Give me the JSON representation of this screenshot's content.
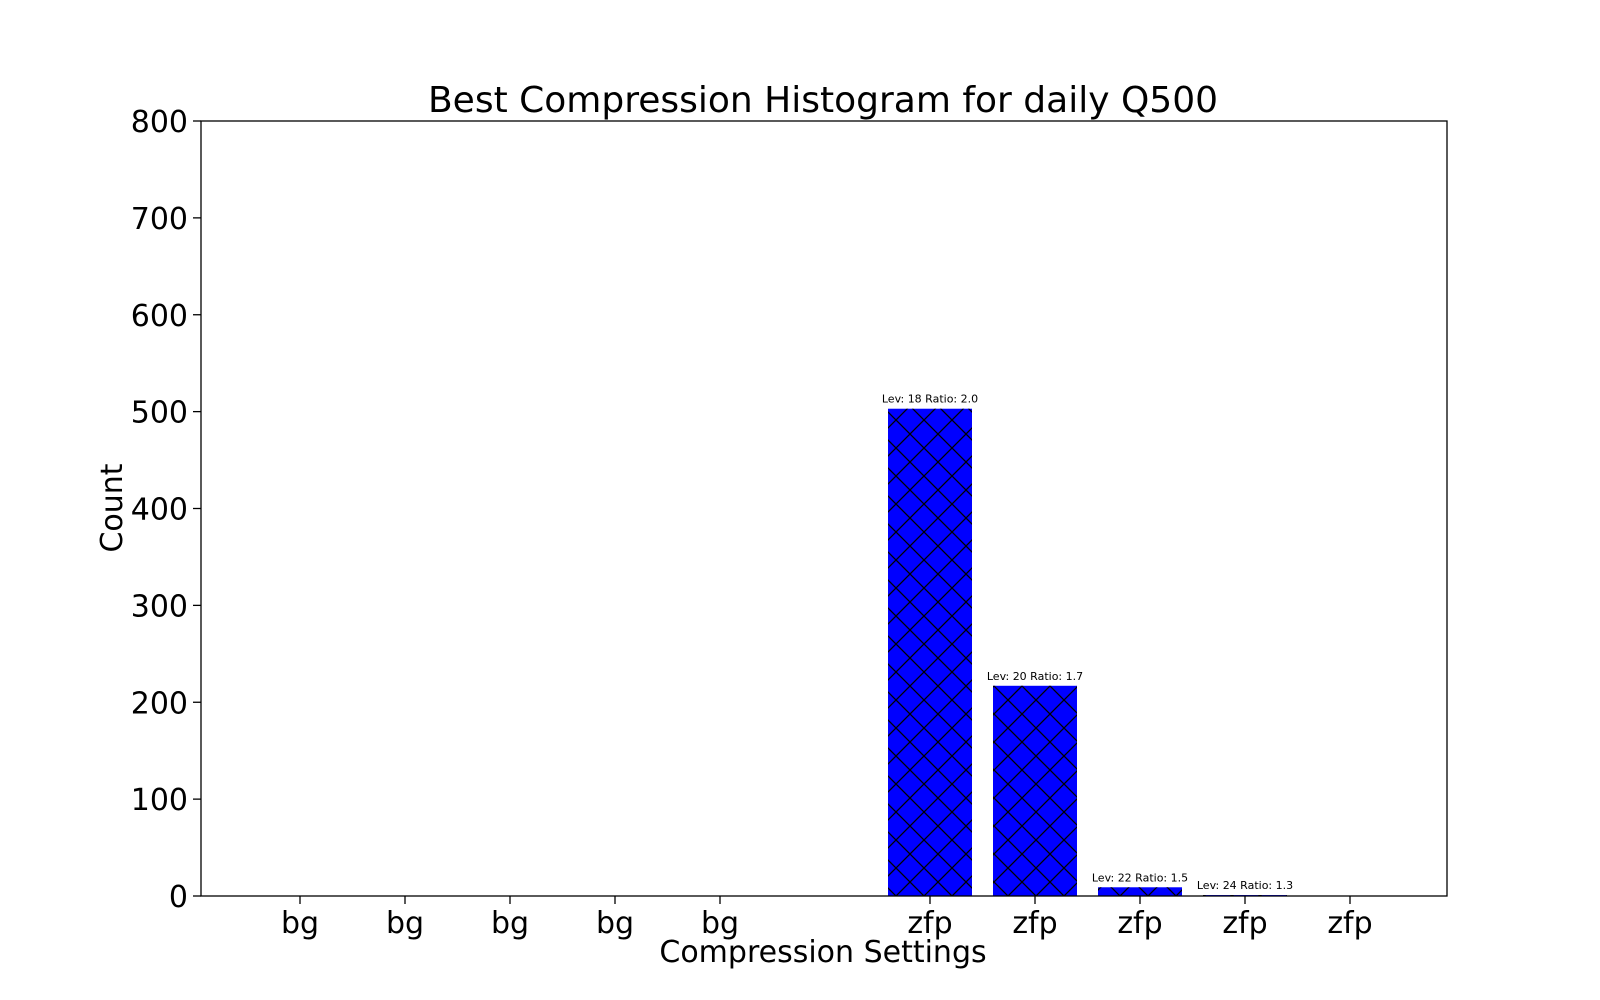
{
  "chart_data": {
    "type": "bar",
    "title": "Best Compression Histogram for daily Q500",
    "xlabel": "Compression Settings",
    "ylabel": "Count",
    "ylim": [
      0,
      800
    ],
    "yticks": [
      0,
      100,
      200,
      300,
      400,
      500,
      600,
      700,
      800
    ],
    "categories": [
      "bg",
      "bg",
      "bg",
      "bg",
      "bg",
      "zfp",
      "zfp",
      "zfp",
      "zfp",
      "zfp"
    ],
    "values": [
      0,
      0,
      0,
      0,
      0,
      503,
      217,
      9,
      1,
      0
    ],
    "annotations": [
      "",
      "",
      "",
      "",
      "",
      "Lev: 18 Ratio: 2.0",
      "Lev: 20 Ratio: 1.7",
      "Lev: 22 Ratio: 1.5",
      "Lev: 24 Ratio: 1.3",
      ""
    ],
    "bar_color": "#0000ff",
    "hatch": "crosshatch",
    "grid": false,
    "legend": "none"
  }
}
